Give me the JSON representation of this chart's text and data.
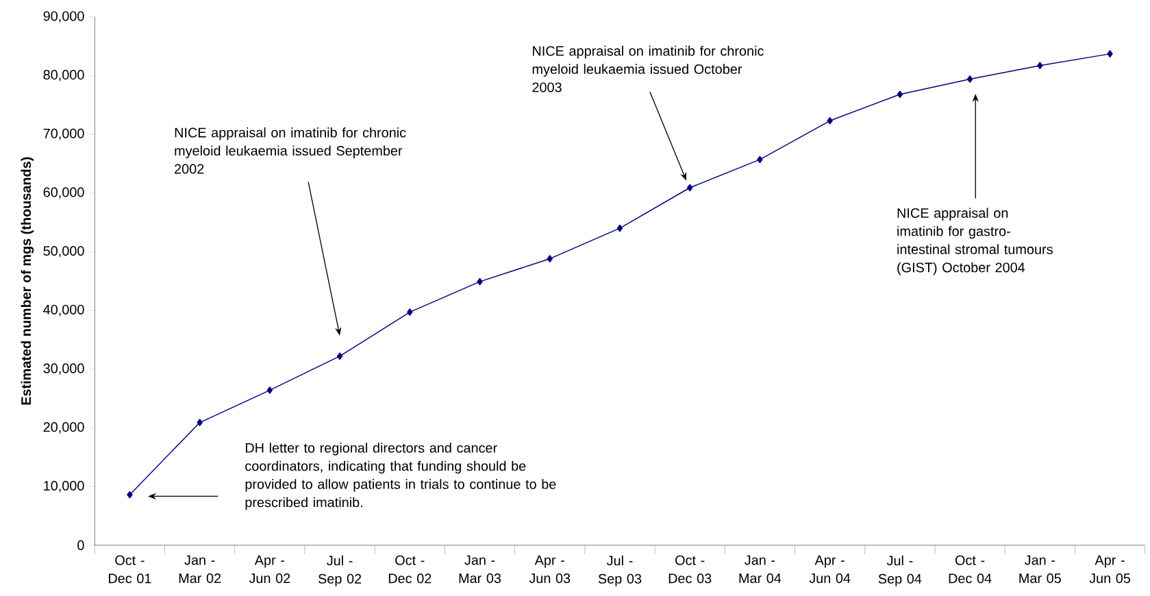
{
  "chart_data": {
    "type": "line",
    "ylabel": "Estimated number of mgs (thousands)",
    "categories": [
      "Oct - Dec 01",
      "Jan - Mar 02",
      "Apr - Jun 02",
      "Jul - Sep 02",
      "Oct - Dec 02",
      "Jan - Mar 03",
      "Apr - Jun 03",
      "Jul - Sep 03",
      "Oct - Dec 03",
      "Jan - Mar 04",
      "Apr - Jun 04",
      "Jul - Sep 04",
      "Oct - Dec 04",
      "Jan - Mar 05",
      "Apr - Jun 05"
    ],
    "series": [
      {
        "color": "#000080",
        "values": [
          8600,
          20900,
          26400,
          32200,
          39700,
          44900,
          48800,
          54000,
          60900,
          65700,
          72300,
          76800,
          79400,
          81700,
          83700
        ]
      }
    ],
    "ylim": [
      0,
      90000
    ],
    "yticks": [
      {
        "value": 0,
        "label": "0"
      },
      {
        "value": 10000,
        "label": "10,000"
      },
      {
        "value": 20000,
        "label": "20,000"
      },
      {
        "value": 30000,
        "label": "30,000"
      },
      {
        "value": 40000,
        "label": "40,000"
      },
      {
        "value": 50000,
        "label": "50,000"
      },
      {
        "value": 60000,
        "label": "60,000"
      },
      {
        "value": 70000,
        "label": "70,000"
      },
      {
        "value": 80000,
        "label": "80,000"
      },
      {
        "value": 90000,
        "label": "90,000"
      }
    ],
    "grid": false,
    "marker": "diamond",
    "line_style": "solid",
    "annotations": [
      "DH letter to regional directors and cancer coordinators, indicating that funding should be provided to allow patients in trials to continue to be prescribed imatinib.",
      "NICE appraisal on imatinib for chronic myeloid leukaemia issued September 2002",
      "NICE appraisal on imatinib for chronic myeloid leukaemia issued October 2003",
      "NICE appraisal on imatinib for gastro-intestinal stromal tumours (GIST) October 2004"
    ]
  }
}
